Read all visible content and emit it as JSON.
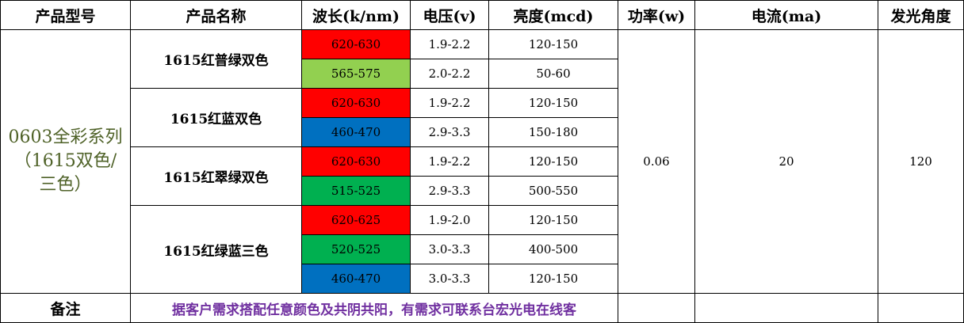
{
  "header": [
    "产品型号",
    "产品名称",
    "波长(k/nm)",
    "电压(v)",
    "亮度(mcd)",
    "功率(w)",
    "电流(ma)",
    "发光角度"
  ],
  "series_name": "0603全彩系列（1615双色/三色）",
  "products": [
    {
      "name": "1615红普绿双色",
      "variants": [
        {
          "wavelength": "620-630",
          "color": "#ff0000",
          "voltage": "1.9-2.2",
          "brightness": "120-150"
        },
        {
          "wavelength": "565-575",
          "color": "#92d050",
          "voltage": "2.0-2.2",
          "brightness": "50-60"
        }
      ]
    },
    {
      "name": "1615红蓝双色",
      "variants": [
        {
          "wavelength": "620-630",
          "color": "#ff0000",
          "voltage": "1.9-2.2",
          "brightness": "120-150"
        },
        {
          "wavelength": "460-470",
          "color": "#0070c0",
          "voltage": "2.9-3.3",
          "brightness": "150-180"
        }
      ]
    },
    {
      "name": "1615红翠绿双色",
      "variants": [
        {
          "wavelength": "620-630",
          "color": "#ff0000",
          "voltage": "1.9-2.2",
          "brightness": "120-150"
        },
        {
          "wavelength": "515-525",
          "color": "#00b050",
          "voltage": "2.9-3.3",
          "brightness": "500-550"
        }
      ]
    },
    {
      "name": "1615红绿蓝三色",
      "variants": [
        {
          "wavelength": "620-625",
          "color": "#ff0000",
          "voltage": "1.9-2.0",
          "brightness": "120-150"
        },
        {
          "wavelength": "520-525",
          "color": "#00b050",
          "voltage": "3.0-3.3",
          "brightness": "400-500"
        },
        {
          "wavelength": "460-470",
          "color": "#0070c0",
          "voltage": "3.0-3.3",
          "brightness": "120-150"
        }
      ]
    }
  ],
  "power": "0.06",
  "current": "20",
  "angle": "120",
  "note": {
    "label": "备注",
    "text": "据客户需求搭配任意颜色及共阴共阳，有需求可联系台宏光电在线客"
  }
}
